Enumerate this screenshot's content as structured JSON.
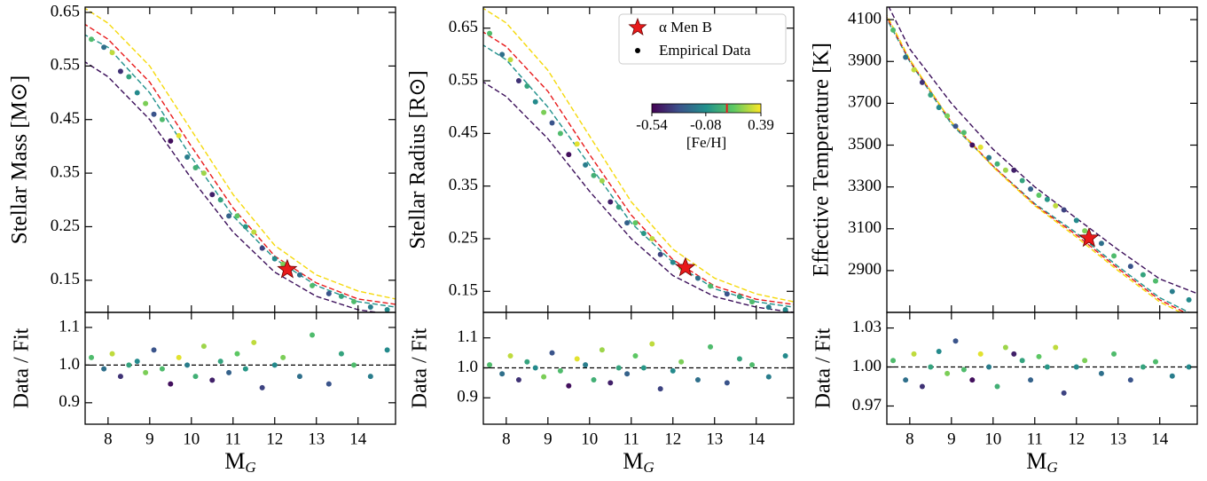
{
  "chart_data": [
    {
      "type": "scatter",
      "ylabel": "Stellar Mass [M⊙]",
      "xlim": [
        7.45,
        14.9
      ],
      "xticks": [
        8,
        9,
        10,
        11,
        12,
        13,
        14
      ],
      "ylim": [
        0.09,
        0.66
      ],
      "yticks": [
        0.15,
        0.25,
        0.35,
        0.45,
        0.55,
        0.65
      ],
      "series": [
        {
          "x": [
            7.6,
            7.9,
            8.1,
            8.3,
            8.5,
            8.7,
            8.9,
            9.1,
            9.3,
            9.5,
            9.7,
            9.9,
            10.1,
            10.3,
            10.5,
            10.7,
            10.9,
            11.1,
            11.3,
            11.5,
            11.7,
            12.0,
            12.2,
            12.6,
            12.9,
            13.3,
            13.6,
            13.9,
            14.3,
            14.7
          ],
          "values": [
            0.6,
            0.585,
            0.575,
            0.54,
            0.53,
            0.5,
            0.48,
            0.46,
            0.45,
            0.41,
            0.42,
            0.38,
            0.36,
            0.35,
            0.31,
            0.3,
            0.27,
            0.27,
            0.25,
            0.24,
            0.21,
            0.19,
            0.18,
            0.16,
            0.14,
            0.125,
            0.12,
            0.11,
            0.1,
            0.095
          ],
          "feh": [
            0.1,
            -0.2,
            0.3,
            -0.4,
            0.0,
            -0.1,
            0.2,
            -0.3,
            0.1,
            -0.5,
            0.35,
            -0.15,
            0.05,
            0.25,
            -0.45,
            0.0,
            -0.25,
            0.15,
            -0.05,
            0.3,
            -0.35,
            -0.1,
            0.2,
            -0.2,
            0.1,
            -0.3,
            0.0,
            0.1,
            -0.15,
            -0.1
          ]
        }
      ],
      "curve_x": [
        7.4,
        8,
        9,
        10,
        11,
        12,
        13,
        14,
        14.9
      ],
      "curves": [
        {
          "color": "#3b0f5a",
          "values": [
            0.56,
            0.53,
            0.45,
            0.34,
            0.24,
            0.165,
            0.12,
            0.095,
            0.085
          ]
        },
        {
          "color": "#21918c",
          "values": [
            0.61,
            0.585,
            0.5,
            0.38,
            0.27,
            0.19,
            0.14,
            0.11,
            0.1
          ]
        },
        {
          "color": "#e8191a",
          "values": [
            0.63,
            0.6,
            0.52,
            0.4,
            0.285,
            0.195,
            0.145,
            0.115,
            0.105
          ]
        },
        {
          "color": "#f5d90a",
          "values": [
            0.66,
            0.63,
            0.55,
            0.43,
            0.31,
            0.215,
            0.16,
            0.13,
            0.115
          ]
        }
      ],
      "highlight": {
        "x": 12.3,
        "y": 0.17,
        "color": "#e8191a"
      }
    },
    {
      "type": "scatter",
      "ylabel": "Data / Fit",
      "xlabel": {
        "text": "M",
        "subscript": "G"
      },
      "xlim": [
        7.45,
        14.9
      ],
      "xticks": [
        8,
        9,
        10,
        11,
        12,
        13,
        14
      ],
      "ylim": [
        0.843,
        1.14
      ],
      "yticks": [
        0.9,
        {
          "value": 1,
          "label": "1.0"
        },
        1.1
      ],
      "hline": 1,
      "series": [
        {
          "x": [
            7.6,
            7.9,
            8.1,
            8.3,
            8.5,
            8.7,
            8.9,
            9.1,
            9.3,
            9.5,
            9.7,
            9.9,
            10.1,
            10.3,
            10.5,
            10.7,
            10.9,
            11.1,
            11.3,
            11.5,
            11.7,
            12.0,
            12.2,
            12.6,
            12.9,
            13.3,
            13.6,
            13.9,
            14.3,
            14.7
          ],
          "values": [
            1.02,
            0.99,
            1.03,
            0.97,
            1.0,
            1.01,
            0.98,
            1.04,
            0.99,
            0.95,
            1.02,
            1.0,
            0.97,
            1.05,
            0.96,
            1.01,
            0.98,
            1.03,
            0.99,
            1.06,
            0.94,
            1.0,
            1.02,
            0.97,
            1.08,
            0.95,
            1.03,
            1.0,
            0.97,
            1.04
          ],
          "feh": [
            0.1,
            -0.2,
            0.3,
            -0.4,
            0.0,
            -0.1,
            0.2,
            -0.3,
            0.1,
            -0.5,
            0.35,
            -0.15,
            0.05,
            0.25,
            -0.45,
            0.0,
            -0.25,
            0.15,
            -0.05,
            0.3,
            -0.35,
            -0.1,
            0.2,
            -0.2,
            0.1,
            -0.3,
            0.0,
            0.1,
            -0.15,
            -0.1
          ]
        }
      ]
    },
    {
      "type": "scatter",
      "ylabel": "Stellar Radius [R⊙]",
      "xlim": [
        7.45,
        14.9
      ],
      "xticks": [
        8,
        9,
        10,
        11,
        12,
        13,
        14
      ],
      "ylim": [
        0.11,
        0.69
      ],
      "yticks": [
        0.15,
        0.25,
        0.35,
        0.45,
        0.55,
        0.65
      ],
      "series": [
        {
          "name": "Empirical Data",
          "x": [
            7.6,
            7.9,
            8.1,
            8.3,
            8.5,
            8.7,
            8.9,
            9.1,
            9.3,
            9.5,
            9.7,
            9.9,
            10.1,
            10.3,
            10.5,
            10.7,
            10.9,
            11.1,
            11.3,
            11.5,
            11.7,
            12.0,
            12.2,
            12.6,
            12.9,
            13.3,
            13.6,
            13.9,
            14.3,
            14.7
          ],
          "values": [
            0.64,
            0.6,
            0.59,
            0.55,
            0.54,
            0.51,
            0.49,
            0.47,
            0.45,
            0.41,
            0.43,
            0.39,
            0.37,
            0.36,
            0.32,
            0.31,
            0.28,
            0.28,
            0.26,
            0.25,
            0.22,
            0.205,
            0.195,
            0.175,
            0.16,
            0.145,
            0.14,
            0.13,
            0.12,
            0.115
          ],
          "feh": [
            0.1,
            -0.2,
            0.3,
            -0.4,
            0.0,
            -0.1,
            0.2,
            -0.3,
            0.1,
            -0.5,
            0.35,
            -0.15,
            0.05,
            0.25,
            -0.45,
            0.0,
            -0.25,
            0.15,
            -0.05,
            0.3,
            -0.35,
            -0.1,
            0.2,
            -0.2,
            0.1,
            -0.3,
            0.0,
            0.1,
            -0.15,
            -0.1
          ]
        }
      ],
      "curve_x": [
        7.4,
        8,
        9,
        10,
        11,
        12,
        13,
        14,
        14.9
      ],
      "curves": [
        {
          "color": "#3b0f5a",
          "values": [
            0.55,
            0.52,
            0.44,
            0.34,
            0.25,
            0.18,
            0.14,
            0.12,
            0.11
          ]
        },
        {
          "color": "#21918c",
          "values": [
            0.62,
            0.59,
            0.5,
            0.39,
            0.28,
            0.205,
            0.155,
            0.13,
            0.12
          ]
        },
        {
          "color": "#e8191a",
          "values": [
            0.645,
            0.615,
            0.53,
            0.41,
            0.295,
            0.21,
            0.16,
            0.135,
            0.125
          ]
        },
        {
          "color": "#f5d90a",
          "values": [
            0.69,
            0.66,
            0.57,
            0.445,
            0.32,
            0.23,
            0.175,
            0.145,
            0.13
          ]
        }
      ],
      "highlight": {
        "name": "α Men B",
        "x": 12.3,
        "y": 0.195,
        "color": "#e8191a"
      },
      "legend": "upper right",
      "colorbar": {
        "label": "[Fe/H]",
        "lim": [
          -0.54,
          0.39
        ],
        "ticks": [
          -0.54,
          -0.08,
          0.39
        ],
        "colormap": [
          "#440154",
          "#3b528b",
          "#21918c",
          "#5ec962",
          "#fde725"
        ],
        "marker": 0.1,
        "marker_color": "#e8191a"
      }
    },
    {
      "type": "scatter",
      "ylabel": "Data / Fit",
      "xlabel": {
        "text": "M",
        "subscript": "G"
      },
      "xlim": [
        7.45,
        14.9
      ],
      "xticks": [
        8,
        9,
        10,
        11,
        12,
        13,
        14
      ],
      "ylim": [
        0.812,
        1.185
      ],
      "yticks": [
        0.9,
        {
          "value": 1,
          "label": "1.0"
        },
        1.1
      ],
      "hline": 1,
      "series": [
        {
          "x": [
            7.6,
            7.9,
            8.1,
            8.3,
            8.5,
            8.7,
            8.9,
            9.1,
            9.3,
            9.5,
            9.7,
            9.9,
            10.1,
            10.3,
            10.5,
            10.7,
            10.9,
            11.1,
            11.3,
            11.5,
            11.7,
            12.0,
            12.2,
            12.6,
            12.9,
            13.3,
            13.6,
            13.9,
            14.3,
            14.7
          ],
          "values": [
            1.01,
            0.98,
            1.04,
            0.96,
            1.02,
            1.0,
            0.97,
            1.05,
            0.99,
            0.94,
            1.03,
            1.01,
            0.96,
            1.06,
            0.95,
            1.0,
            0.98,
            1.04,
            1.0,
            1.08,
            0.93,
            0.99,
            1.02,
            0.96,
            1.07,
            0.95,
            1.03,
            1.01,
            0.97,
            1.04
          ],
          "feh": [
            0.1,
            -0.2,
            0.3,
            -0.4,
            0.0,
            -0.1,
            0.2,
            -0.3,
            0.1,
            -0.5,
            0.35,
            -0.15,
            0.05,
            0.25,
            -0.45,
            0.0,
            -0.25,
            0.15,
            -0.05,
            0.3,
            -0.35,
            -0.1,
            0.2,
            -0.2,
            0.1,
            -0.3,
            0.0,
            0.1,
            -0.15,
            -0.1
          ]
        }
      ]
    },
    {
      "type": "scatter",
      "ylabel": "Effective Temperature [K]",
      "xlim": [
        7.45,
        14.9
      ],
      "xticks": [
        8,
        9,
        10,
        11,
        12,
        13,
        14
      ],
      "ylim": [
        2700,
        4160
      ],
      "yticks": [
        2900,
        3100,
        3300,
        3500,
        3700,
        3900,
        4100
      ],
      "series": [
        {
          "x": [
            7.6,
            7.9,
            8.1,
            8.3,
            8.5,
            8.7,
            8.9,
            9.1,
            9.3,
            9.5,
            9.7,
            9.9,
            10.1,
            10.3,
            10.5,
            10.7,
            10.9,
            11.1,
            11.3,
            11.5,
            11.7,
            12.0,
            12.2,
            12.6,
            12.9,
            13.3,
            13.6,
            13.9,
            14.3,
            14.7
          ],
          "values": [
            4050,
            3920,
            3860,
            3800,
            3740,
            3680,
            3640,
            3590,
            3560,
            3500,
            3490,
            3440,
            3410,
            3380,
            3380,
            3330,
            3290,
            3260,
            3240,
            3210,
            3190,
            3140,
            3090,
            3030,
            2970,
            2920,
            2880,
            2850,
            2800,
            2760
          ],
          "feh": [
            0.1,
            -0.2,
            0.3,
            -0.4,
            0.0,
            -0.1,
            0.2,
            -0.3,
            0.1,
            -0.5,
            0.35,
            -0.15,
            0.05,
            0.25,
            -0.45,
            0.0,
            -0.25,
            0.15,
            -0.05,
            0.3,
            -0.35,
            -0.1,
            0.2,
            -0.2,
            0.1,
            -0.3,
            0.0,
            0.1,
            -0.15,
            -0.1
          ]
        }
      ],
      "curve_x": [
        7.4,
        8,
        9,
        10,
        11,
        12,
        13,
        14,
        14.9
      ],
      "curves": [
        {
          "color": "#3b0f5a",
          "values": [
            4200,
            3960,
            3700,
            3480,
            3300,
            3150,
            3000,
            2860,
            2790
          ]
        },
        {
          "color": "#21918c",
          "values": [
            4120,
            3900,
            3600,
            3400,
            3220,
            3080,
            2920,
            2770,
            2680
          ]
        },
        {
          "color": "#e8191a",
          "values": [
            4130,
            3905,
            3610,
            3400,
            3215,
            3070,
            2910,
            2760,
            2670
          ]
        },
        {
          "color": "#f5d90a",
          "values": [
            4140,
            3910,
            3610,
            3395,
            3210,
            3060,
            2900,
            2750,
            2660
          ]
        }
      ],
      "highlight": {
        "x": 12.3,
        "y": 3055,
        "color": "#e8191a"
      }
    },
    {
      "type": "scatter",
      "ylabel": "Data / Fit",
      "xlabel": {
        "text": "M",
        "subscript": "G"
      },
      "xlim": [
        7.45,
        14.9
      ],
      "xticks": [
        8,
        9,
        10,
        11,
        12,
        13,
        14
      ],
      "ylim": [
        0.956,
        1.042
      ],
      "yticks": [
        0.97,
        {
          "value": 1,
          "label": "1.00"
        },
        1.03
      ],
      "hline": 1,
      "series": [
        {
          "x": [
            7.6,
            7.9,
            8.1,
            8.3,
            8.5,
            8.7,
            8.9,
            9.1,
            9.3,
            9.5,
            9.7,
            9.9,
            10.1,
            10.3,
            10.5,
            10.7,
            10.9,
            11.1,
            11.3,
            11.5,
            11.7,
            12.0,
            12.2,
            12.6,
            12.9,
            13.3,
            13.6,
            13.9,
            14.3,
            14.7
          ],
          "values": [
            1.005,
            0.99,
            1.01,
            0.985,
            1.0,
            1.012,
            0.995,
            1.02,
            0.998,
            0.99,
            1.01,
            1.0,
            0.985,
            1.015,
            1.01,
            1.005,
            0.99,
            1.008,
            1.0,
            1.015,
            0.98,
            1.0,
            1.005,
            0.995,
            1.01,
            0.99,
            1.0,
            1.004,
            0.993,
            1.0
          ],
          "feh": [
            0.1,
            -0.2,
            0.3,
            -0.4,
            0.0,
            -0.1,
            0.2,
            -0.3,
            0.1,
            -0.5,
            0.35,
            -0.15,
            0.05,
            0.25,
            -0.45,
            0.0,
            -0.25,
            0.15,
            -0.05,
            0.3,
            -0.35,
            -0.1,
            0.2,
            -0.2,
            0.1,
            -0.3,
            0.0,
            0.1,
            -0.15,
            -0.1
          ]
        }
      ]
    }
  ]
}
